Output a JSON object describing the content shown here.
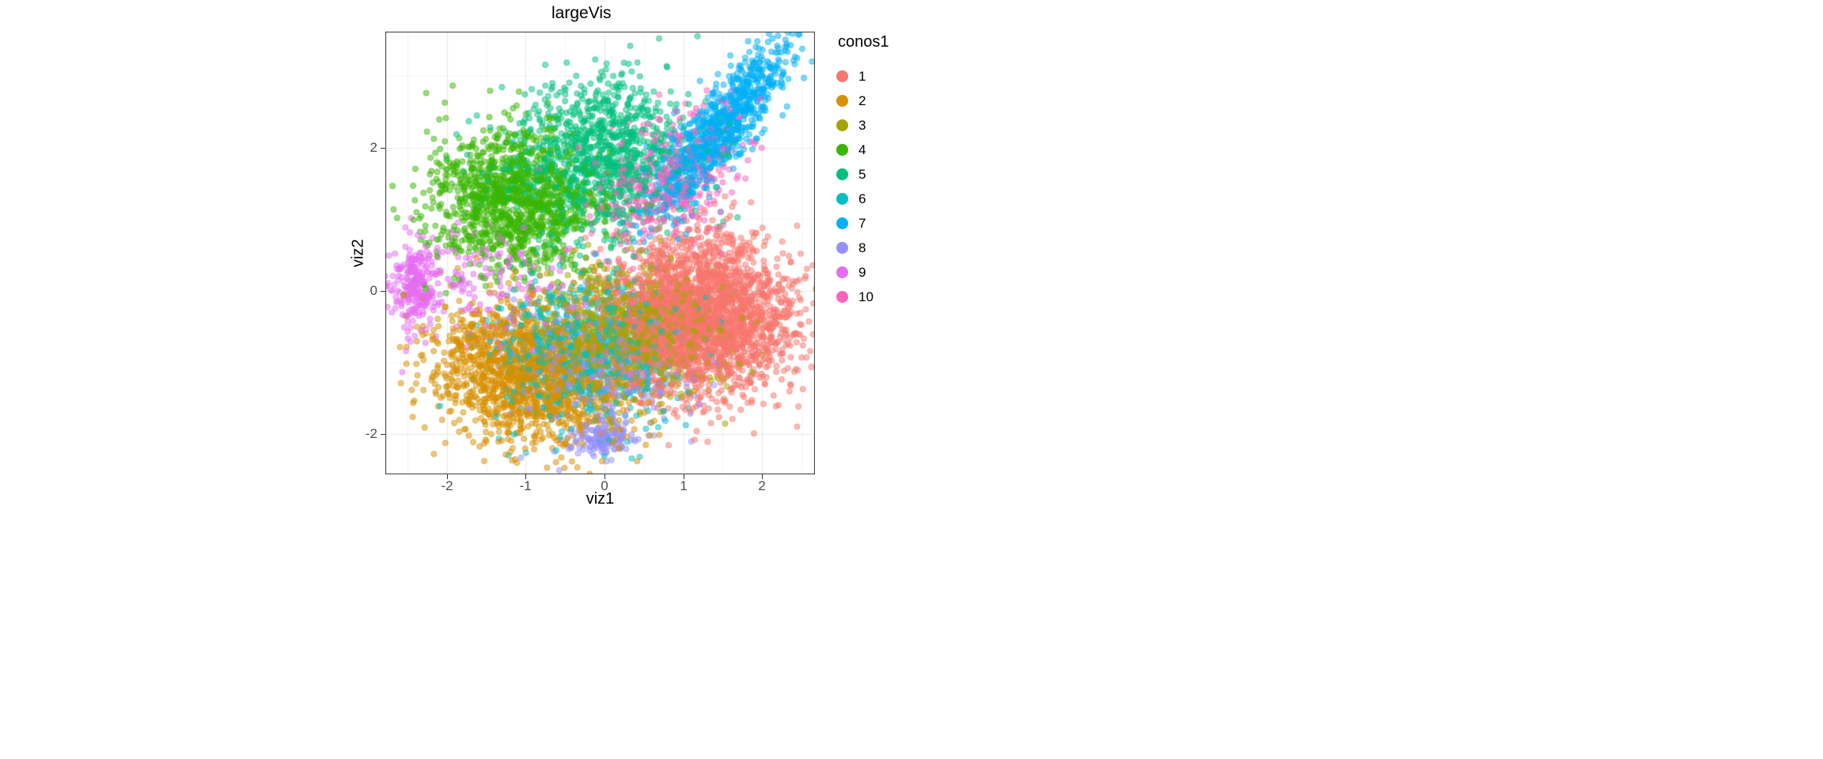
{
  "title": "largeVis",
  "chart_data": {
    "type": "scatter",
    "title": "largeVis",
    "xlabel": "viz1",
    "ylabel": "viz2",
    "xlim": [
      -2.78,
      2.67
    ],
    "ylim": [
      -2.56,
      3.62
    ],
    "x_ticks": [
      -2,
      -1,
      0,
      1,
      2
    ],
    "x_minor_ticks": [
      -2.5,
      -1.5,
      -0.5,
      0.5,
      1.5,
      2.5
    ],
    "y_ticks": [
      -2,
      0,
      2
    ],
    "y_minor_ticks": [
      -1,
      1,
      3
    ],
    "grid": true,
    "legend_title": "conos1",
    "legend_position": "right",
    "point_alpha": 0.5,
    "point_radius": 3.6,
    "colors": {
      "grid_major": "#E7E7E7",
      "grid_minor": "#F3F3F3",
      "panel_border": "#333333",
      "tick_label_color": "#4D4D4D"
    },
    "series": [
      {
        "name": "1",
        "color": "#F8766D",
        "clusters": [
          {
            "cx": 1.2,
            "cy": -0.35,
            "sx": 0.58,
            "sy": 0.55,
            "corr": 0,
            "n": 2600
          }
        ]
      },
      {
        "name": "2",
        "color": "#D89000",
        "clusters": [
          {
            "cx": -1.0,
            "cy": -1.15,
            "sx": 0.62,
            "sy": 0.5,
            "corr": -0.2,
            "n": 1500
          }
        ]
      },
      {
        "name": "3",
        "color": "#A3A500",
        "clusters": [
          {
            "cx": 0.4,
            "cy": -0.55,
            "sx": 0.55,
            "sy": 0.45,
            "corr": 0,
            "n": 900
          }
        ]
      },
      {
        "name": "4",
        "color": "#39B600",
        "clusters": [
          {
            "cx": -1.15,
            "cy": 1.25,
            "sx": 0.52,
            "sy": 0.5,
            "corr": 0,
            "n": 1250
          }
        ]
      },
      {
        "name": "5",
        "color": "#00BF7D",
        "clusters": [
          {
            "cx": -0.05,
            "cy": 1.9,
            "sx": 0.6,
            "sy": 0.55,
            "corr": 0.1,
            "n": 1050
          }
        ]
      },
      {
        "name": "6",
        "color": "#00BFC4",
        "clusters": [
          {
            "cx": -0.3,
            "cy": -0.9,
            "sx": 0.55,
            "sy": 0.5,
            "corr": 0,
            "n": 700
          }
        ]
      },
      {
        "name": "7",
        "color": "#00B0F6",
        "clusters": [
          {
            "cx": 1.45,
            "cy": 2.25,
            "sx": 0.45,
            "sy": 0.6,
            "corr": 0.85,
            "n": 950
          }
        ]
      },
      {
        "name": "8",
        "color": "#9590FF",
        "clusters": [
          {
            "cx": -0.05,
            "cy": -1.05,
            "sx": 0.5,
            "sy": 0.5,
            "corr": 0,
            "n": 340
          },
          {
            "cx": -0.05,
            "cy": -2.05,
            "sx": 0.2,
            "sy": 0.13,
            "corr": 0,
            "n": 130
          }
        ]
      },
      {
        "name": "9",
        "color": "#E76BF3",
        "clusters": [
          {
            "cx": -2.42,
            "cy": 0.08,
            "sx": 0.16,
            "sy": 0.3,
            "corr": 0,
            "n": 240
          },
          {
            "cx": -1.3,
            "cy": 0.15,
            "sx": 0.6,
            "sy": 0.45,
            "corr": 0,
            "n": 160
          }
        ]
      },
      {
        "name": "10",
        "color": "#FF62BC",
        "clusters": [
          {
            "cx": 0.85,
            "cy": 1.6,
            "sx": 0.45,
            "sy": 0.5,
            "corr": 0.3,
            "n": 380
          }
        ]
      }
    ]
  }
}
